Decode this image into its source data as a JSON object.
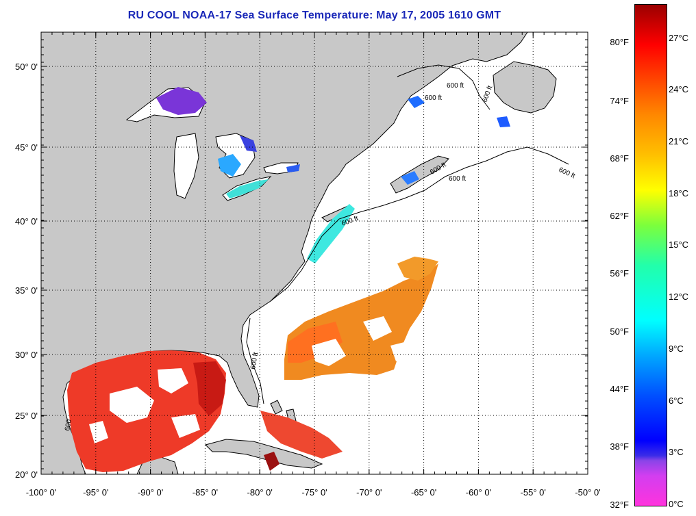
{
  "title": "RU COOL  NOAA-17  Sea Surface Temperature:  May 17, 2005 1610 GMT",
  "map": {
    "lat_labels": [
      "50° 0'",
      "45° 0'",
      "40° 0'",
      "35° 0'",
      "30° 0'",
      "25° 0'",
      "20° 0'"
    ],
    "lat_values": [
      50,
      45,
      40,
      35,
      30,
      25,
      20
    ],
    "lon_labels": [
      "-100° 0'",
      "-95° 0'",
      "-90° 0'",
      "-85° 0'",
      "-80° 0'",
      "-75° 0'",
      "-70° 0'",
      "-65° 0'",
      "-60° 0'",
      "-55° 0'",
      "-50° 0'"
    ],
    "lon_values": [
      -100,
      -95,
      -90,
      -85,
      -80,
      -75,
      -70,
      -65,
      -60,
      -55,
      -50
    ],
    "contour_labels": [
      "600 ft",
      "600 ft",
      "600 ft",
      "600 ft",
      "600 ft",
      "600 ft",
      "600 ft",
      "600 ft",
      "600"
    ],
    "land_color": "#c8c8c8",
    "no_data_color": "#ffffff"
  },
  "colorbar": {
    "fahrenheit": [
      "80°F",
      "74°F",
      "68°F",
      "62°F",
      "56°F",
      "50°F",
      "44°F",
      "38°F",
      "32°F"
    ],
    "celsius": [
      "27°C",
      "24°C",
      "21°C",
      "18°C",
      "15°C",
      "12°C",
      "9°C",
      "6°C",
      "3°C",
      "0°C"
    ]
  }
}
